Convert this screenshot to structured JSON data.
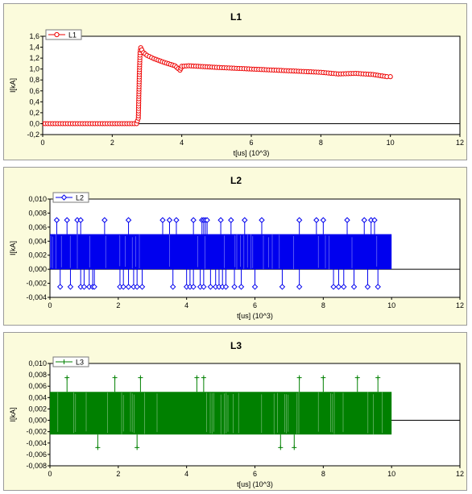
{
  "chart_data": [
    {
      "type": "line",
      "title": "L1",
      "xlabel": "t[us]  (10^3)",
      "ylabel": "I[kA]",
      "xlim": [
        0,
        12
      ],
      "ylim": [
        -0.2,
        1.6
      ],
      "x_ticks": [
        "0",
        "2",
        "4",
        "6",
        "8",
        "10",
        "12"
      ],
      "y_ticks": [
        "-0,2",
        "0,0",
        "0,2",
        "0,4",
        "0,6",
        "0,8",
        "1,0",
        "1,2",
        "1,4",
        "1,6"
      ],
      "legend_position": "top-left",
      "grid": false,
      "series": [
        {
          "name": "L1",
          "color": "#ee0000",
          "marker": "circle",
          "x": [
            0,
            1,
            2,
            2.7,
            2.75,
            2.78,
            2.8,
            2.82,
            2.85,
            2.9,
            3.0,
            3.2,
            3.5,
            3.8,
            3.95,
            4.0,
            4.2,
            5,
            6,
            7,
            8,
            8.5,
            9,
            9.5,
            9.9,
            10.0
          ],
          "y": [
            0,
            0,
            0,
            0,
            0.1,
            0.9,
            1.3,
            1.39,
            1.35,
            1.3,
            1.25,
            1.19,
            1.12,
            1.06,
            0.98,
            1.05,
            1.06,
            1.03,
            1.0,
            0.97,
            0.94,
            0.91,
            0.92,
            0.9,
            0.86,
            0.86
          ]
        }
      ]
    },
    {
      "type": "line",
      "title": "L2",
      "xlabel": "t[us]  (10^3)",
      "ylabel": "I[kA]",
      "xlim": [
        0,
        12
      ],
      "ylim": [
        -0.004,
        0.01
      ],
      "x_ticks": [
        "0",
        "2",
        "4",
        "6",
        "8",
        "10",
        "12"
      ],
      "y_ticks": [
        "-0,004",
        "-0,002",
        "0,000",
        "0,002",
        "0,004",
        "0,006",
        "0,008",
        "0,010"
      ],
      "legend_position": "top-left",
      "grid": false,
      "series": [
        {
          "name": "L2",
          "color": "#0000ee",
          "marker": "diamond",
          "band": [
            0,
            10,
            0,
            0.005
          ],
          "x": [
            0.2,
            0.5,
            0.8,
            0.9,
            1.6,
            2.3,
            3.3,
            3.5,
            3.7,
            4.2,
            4.45,
            4.5,
            4.55,
            4.6,
            5.0,
            5.3,
            5.7,
            6.2,
            7.3,
            7.8,
            8.0,
            8.7,
            9.2,
            9.4,
            9.5
          ],
          "y": [
            0.007,
            0.007,
            0.007,
            0.007,
            0.007,
            0.007,
            0.007,
            0.007,
            0.007,
            0.007,
            0.007,
            0.007,
            0.007,
            0.007,
            0.007,
            0.007,
            0.007,
            0.007,
            0.007,
            0.007,
            0.007,
            0.007,
            0.007,
            0.007,
            0.007
          ],
          "x_low": [
            0.3,
            0.6,
            0.9,
            1.0,
            1.15,
            1.25,
            1.3,
            2.05,
            2.15,
            2.3,
            2.45,
            2.55,
            2.7,
            3.6,
            4.0,
            4.1,
            4.2,
            4.4,
            4.5,
            4.7,
            4.85,
            4.95,
            5.05,
            5.15,
            5.4,
            5.6,
            6.0,
            6.8,
            7.3,
            8.3,
            8.45,
            8.6,
            8.9,
            9.3,
            9.6
          ],
          "y_low": [
            -0.0025,
            -0.0025,
            -0.0025,
            -0.0025,
            -0.0025,
            -0.0025,
            -0.0025,
            -0.0025,
            -0.0025,
            -0.0025,
            -0.0025,
            -0.0025,
            -0.0025,
            -0.0025,
            -0.0025,
            -0.0025,
            -0.0025,
            -0.0025,
            -0.0025,
            -0.0025,
            -0.0025,
            -0.0025,
            -0.0025,
            -0.0025,
            -0.0025,
            -0.0025,
            -0.0025,
            -0.0025,
            -0.0025,
            -0.0025,
            -0.0025,
            -0.0025,
            -0.0025,
            -0.0025,
            -0.0025
          ]
        }
      ]
    },
    {
      "type": "line",
      "title": "L3",
      "xlabel": "t[us]  (10^3)",
      "ylabel": "I[kA]",
      "xlim": [
        0,
        12
      ],
      "ylim": [
        -0.008,
        0.01
      ],
      "x_ticks": [
        "0",
        "2",
        "4",
        "6",
        "8",
        "10",
        "12"
      ],
      "y_ticks": [
        "-0,008",
        "-0,006",
        "-0,004",
        "-0,002",
        "0,000",
        "0,002",
        "0,004",
        "0,006",
        "0,008",
        "0,010"
      ],
      "legend_position": "top-left",
      "grid": false,
      "series": [
        {
          "name": "L3",
          "color": "#008000",
          "marker": "plus",
          "band": [
            0,
            10,
            -0.0025,
            0.005
          ],
          "x": [
            0.5,
            1.9,
            2.65,
            4.3,
            4.5,
            7.3,
            8.0,
            9.0,
            9.6
          ],
          "y": [
            0.0075,
            0.0075,
            0.0075,
            0.0075,
            0.0075,
            0.0075,
            0.0075,
            0.0075,
            0.0075
          ],
          "x_low": [
            1.4,
            2.55,
            6.75,
            7.15
          ],
          "y_low": [
            -0.0048,
            -0.0048,
            -0.0048,
            -0.0048
          ]
        }
      ]
    }
  ]
}
